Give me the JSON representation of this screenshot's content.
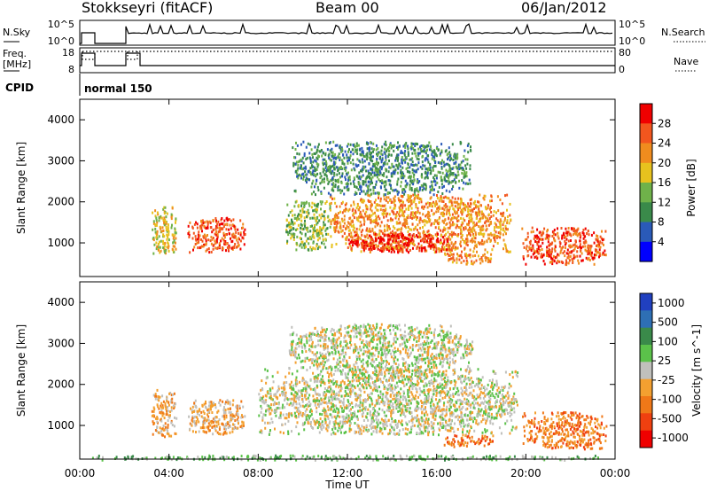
{
  "header": {
    "radar": "Stokkseyri (fitACF)",
    "beam": "Beam 00",
    "date": "06/Jan/2012"
  },
  "top_panel": {
    "nsky_label": "N.Sky",
    "nsky_ticks": [
      "10^5",
      "10^0"
    ],
    "nsearch_label": "N.Search",
    "nsearch_ticks": [
      "10^5",
      "10^0"
    ],
    "freq_label_1": "Freq.",
    "freq_label_2": "[MHz]",
    "freq_ticks": [
      "18",
      "8"
    ],
    "nave_label": "Nave",
    "nave_ticks": [
      "80",
      "0"
    ],
    "cpid_label": "CPID",
    "cpid_value": "normal 150"
  },
  "colors": {
    "power": [
      "#0000ff",
      "#2a5ab8",
      "#3a8a4a",
      "#6fb24a",
      "#e7c21e",
      "#f08c1e",
      "#f2561e",
      "#f00000"
    ],
    "velocity": [
      "#2040c0",
      "#2e6fb4",
      "#3a8a4a",
      "#5bc24a",
      "#c0c0bc",
      "#f3a030",
      "#f07818",
      "#f04010",
      "#f00000"
    ],
    "ground_scatter": "#c4c4c0"
  },
  "chart_data": [
    {
      "type": "heatmap",
      "title": "",
      "xlabel": "",
      "ylabel": "Slant Range [km]",
      "xlim": [
        "00:00",
        "24:00"
      ],
      "ylim": [
        180,
        4500
      ],
      "yticks": [
        "1000",
        "2000",
        "3000",
        "4000"
      ],
      "colorbar": {
        "label": "Power [dB]",
        "ticks": [
          "4",
          "8",
          "12",
          "16",
          "20",
          "24",
          "28"
        ]
      },
      "blobs": [
        {
          "t": [
            3.2,
            4.3
          ],
          "r": [
            750,
            1900
          ],
          "level": 4
        },
        {
          "t": [
            4.8,
            7.4
          ],
          "r": [
            800,
            1650
          ],
          "level": 6
        },
        {
          "t": [
            9.2,
            11.2
          ],
          "r": [
            850,
            2050
          ],
          "level": 3
        },
        {
          "t": [
            11.2,
            19.3
          ],
          "r": [
            800,
            2200
          ],
          "level": 5
        },
        {
          "t": [
            12.0,
            16.5
          ],
          "r": [
            800,
            1250
          ],
          "level": 7
        },
        {
          "t": [
            16.3,
            18.5
          ],
          "r": [
            500,
            800
          ],
          "level": 5
        },
        {
          "t": [
            19.8,
            23.6
          ],
          "r": [
            500,
            1400
          ],
          "level": 6
        },
        {
          "t": [
            9.5,
            17.5
          ],
          "r": [
            2200,
            3500
          ],
          "level": 2
        }
      ]
    },
    {
      "type": "heatmap",
      "title": "",
      "xlabel": "Time UT",
      "ylabel": "Slant Range [km]",
      "xlim": [
        "00:00",
        "24:00"
      ],
      "ylim": [
        180,
        4500
      ],
      "xticks": [
        "00:00",
        "04:00",
        "08:00",
        "12:00",
        "16:00",
        "20:00",
        "00:00"
      ],
      "yticks": [
        "1000",
        "2000",
        "3000",
        "4000"
      ],
      "colorbar": {
        "label": "Velocity [m s^-1]",
        "ticks": [
          "1000",
          "500",
          "100",
          "25",
          "-25",
          "-100",
          "-500",
          "-1000"
        ]
      },
      "blobs": [
        {
          "t": [
            3.2,
            4.3
          ],
          "r": [
            750,
            1900
          ],
          "level": 5
        },
        {
          "t": [
            4.8,
            7.4
          ],
          "r": [
            800,
            1650
          ],
          "level": 5
        },
        {
          "t": [
            8.0,
            19.6
          ],
          "r": [
            800,
            2400
          ],
          "level": 4
        },
        {
          "t": [
            9.3,
            17.6
          ],
          "r": [
            2300,
            3500
          ],
          "level": 4
        },
        {
          "t": [
            16.3,
            18.5
          ],
          "r": [
            500,
            800
          ],
          "level": 6
        },
        {
          "t": [
            19.8,
            23.6
          ],
          "r": [
            450,
            1350
          ],
          "level": 6
        },
        {
          "t": [
            0.5,
            23.5
          ],
          "r": [
            180,
            300
          ],
          "level": 3
        }
      ]
    }
  ]
}
